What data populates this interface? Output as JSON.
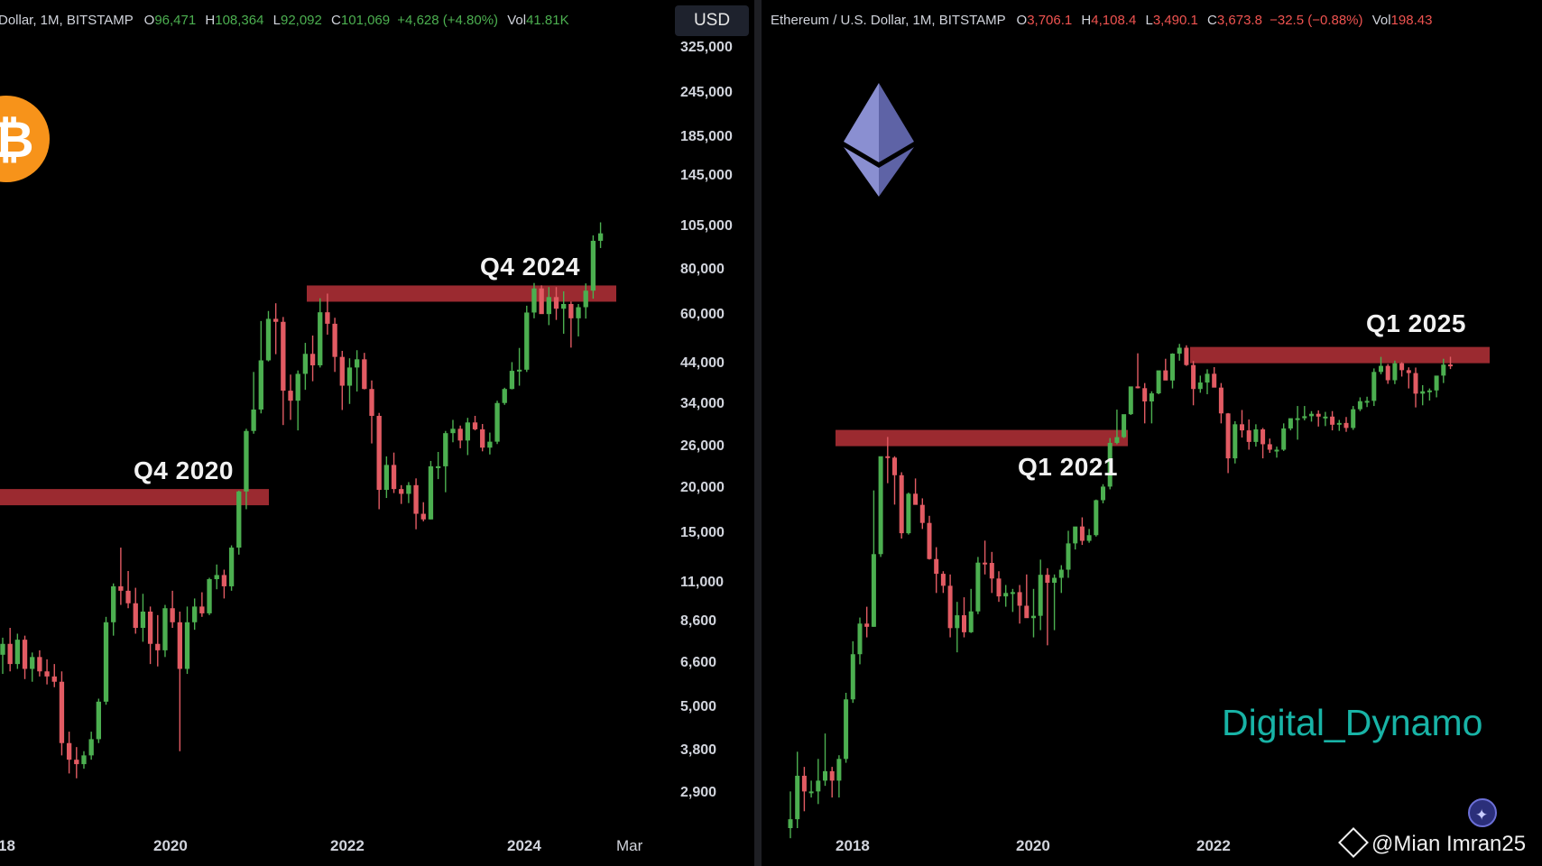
{
  "colors": {
    "up": "#4caf50",
    "down": "#e25b63",
    "resistance": "#9b2a30",
    "background": "#000000",
    "watermark": "#18b3a6"
  },
  "left_panel": {
    "legend": {
      "title": "Dollar, 1M, BITSTAMP",
      "o_key": "O",
      "o_val": "96,471",
      "h_key": "H",
      "h_val": "108,364",
      "l_key": "L",
      "l_val": "92,092",
      "c_key": "C",
      "c_val": "101,069",
      "change": "+4,628 (+4.80%)",
      "vol_key": "Vol",
      "vol_val": "41.81K"
    },
    "currency_button": "USD",
    "annotations": {
      "q4_2020": "Q4 2020",
      "q4_2024": "Q4 2024"
    }
  },
  "right_panel": {
    "legend": {
      "title": "Ethereum / U.S. Dollar, 1M, BITSTAMP",
      "o_key": "O",
      "o_val": "3,706.1",
      "h_key": "H",
      "h_val": "4,108.4",
      "l_key": "L",
      "l_val": "3,490.1",
      "c_key": "C",
      "c_val": "3,673.8",
      "change": "−32.5 (−0.88%)",
      "vol_key": "Vol",
      "vol_val": "198.43"
    },
    "annotations": {
      "q1_2021": "Q1 2021",
      "q1_2025": "Q1 2025"
    }
  },
  "watermark_text": "Digital_Dynamo",
  "credit_text": "@Mian Imran25",
  "icons": [
    "bitcoin-logo-icon",
    "ethereum-logo-icon",
    "binance-diamond-icon",
    "star-badge-icon"
  ],
  "chart_data": [
    {
      "type": "candlestick",
      "series_label": "Dollar, 1M, BITSTAMP",
      "scale": "log",
      "y_ticks": [
        "325,000",
        "245,000",
        "185,000",
        "145,000",
        "105,000",
        "80,000",
        "60,000",
        "44,000",
        "34,000",
        "26,000",
        "20,000",
        "15,000",
        "11,000",
        "8,600",
        "6,600",
        "5,000",
        "3,800",
        "2,900"
      ],
      "x_ticks": [
        "18",
        "2020",
        "2022",
        "2024",
        "Mar"
      ],
      "resistance_zones": [
        {
          "label": "Q4 2020",
          "level": 19000
        },
        {
          "label": "Q4 2024",
          "level": 69000
        }
      ],
      "candles_ohlc": [
        [
          7000,
          7800,
          6200,
          7500
        ],
        [
          7500,
          8300,
          6300,
          6600
        ],
        [
          6600,
          8000,
          6400,
          7700
        ],
        [
          7700,
          7900,
          6000,
          6400
        ],
        [
          6400,
          7100,
          5900,
          6900
        ],
        [
          6900,
          7200,
          6100,
          6300
        ],
        [
          6300,
          6800,
          5800,
          6100
        ],
        [
          6100,
          6600,
          5700,
          5900
        ],
        [
          5900,
          6300,
          3700,
          4000
        ],
        [
          4000,
          4300,
          3300,
          3600
        ],
        [
          3600,
          3900,
          3200,
          3500
        ],
        [
          3500,
          3800,
          3400,
          3700
        ],
        [
          3700,
          4300,
          3600,
          4100
        ],
        [
          4100,
          5300,
          4000,
          5200
        ],
        [
          5200,
          8900,
          5100,
          8600
        ],
        [
          8600,
          11000,
          7900,
          10800
        ],
        [
          10800,
          13800,
          9600,
          10500
        ],
        [
          10500,
          11900,
          9400,
          9700
        ],
        [
          9700,
          10700,
          8000,
          8300
        ],
        [
          8300,
          10300,
          7600,
          9200
        ],
        [
          9200,
          9500,
          6600,
          7500
        ],
        [
          7500,
          9000,
          6500,
          7200
        ],
        [
          7200,
          9600,
          6900,
          9400
        ],
        [
          9400,
          10500,
          8300,
          8600
        ],
        [
          8600,
          9200,
          3800,
          6400
        ],
        [
          6400,
          9500,
          6200,
          8600
        ],
        [
          8600,
          10000,
          8200,
          9500
        ],
        [
          9500,
          10400,
          8900,
          9100
        ],
        [
          9100,
          11400,
          9000,
          11300
        ],
        [
          11300,
          12400,
          10600,
          11600
        ],
        [
          11600,
          12000,
          10000,
          10800
        ],
        [
          10800,
          14000,
          10500,
          13800
        ],
        [
          13800,
          19800,
          13200,
          19700
        ],
        [
          19700,
          29300,
          17600,
          28900
        ],
        [
          28900,
          42000,
          28400,
          33100
        ],
        [
          33100,
          58000,
          32300,
          45200
        ],
        [
          45200,
          61800,
          44900,
          58800
        ],
        [
          58800,
          64900,
          47000,
          57700
        ],
        [
          57700,
          59500,
          30000,
          37300
        ],
        [
          37300,
          41300,
          31000,
          35000
        ],
        [
          35000,
          42400,
          29000,
          41500
        ],
        [
          41500,
          50500,
          37500,
          47100
        ],
        [
          47100,
          52900,
          39600,
          43800
        ],
        [
          43800,
          67000,
          43200,
          61300
        ],
        [
          61300,
          69000,
          53200,
          57000
        ],
        [
          57000,
          59200,
          42000,
          46200
        ],
        [
          46200,
          48000,
          33000,
          38500
        ],
        [
          38500,
          45800,
          34300,
          43200
        ],
        [
          43200,
          48200,
          37100,
          45500
        ],
        [
          45500,
          47400,
          37600,
          37700
        ],
        [
          37700,
          39800,
          26700,
          31800
        ],
        [
          31800,
          32400,
          17600,
          19900
        ],
        [
          19900,
          24600,
          18900,
          23300
        ],
        [
          23300,
          25200,
          19500,
          20000
        ],
        [
          20000,
          20500,
          18200,
          19400
        ],
        [
          19400,
          20900,
          18300,
          20500
        ],
        [
          20500,
          21400,
          15500,
          17100
        ],
        [
          17100,
          18400,
          16300,
          16500
        ],
        [
          16500,
          23900,
          16500,
          23100
        ],
        [
          23100,
          25300,
          21300,
          23100
        ],
        [
          23100,
          28900,
          19600,
          28500
        ],
        [
          28500,
          31000,
          26900,
          29300
        ],
        [
          29300,
          29900,
          25900,
          27200
        ],
        [
          27200,
          31400,
          24800,
          30500
        ],
        [
          30500,
          31800,
          29000,
          29200
        ],
        [
          29200,
          30200,
          25400,
          26000
        ],
        [
          26000,
          28600,
          24900,
          27000
        ],
        [
          27000,
          35000,
          26600,
          34500
        ],
        [
          34500,
          38000,
          34100,
          37700
        ],
        [
          37700,
          44700,
          37600,
          42300
        ],
        [
          42300,
          48900,
          38500,
          42600
        ],
        [
          42600,
          63900,
          42000,
          61200
        ],
        [
          61200,
          73800,
          59000,
          71300
        ],
        [
          71300,
          72700,
          60800,
          60600
        ],
        [
          60600,
          71900,
          56500,
          67500
        ],
        [
          67500,
          71900,
          58400,
          62700
        ],
        [
          62700,
          70000,
          53500,
          64600
        ],
        [
          64600,
          65600,
          49000,
          59000
        ],
        [
          59000,
          64600,
          52600,
          63300
        ],
        [
          63300,
          73600,
          58900,
          70300
        ],
        [
          70300,
          99800,
          66800,
          96400
        ],
        [
          96400,
          108364,
          92092,
          101069
        ]
      ]
    },
    {
      "type": "candlestick",
      "series_label": "Ethereum / U.S. Dollar, 1M, BITSTAMP",
      "scale": "log",
      "x_ticks": [
        "2018",
        "2020",
        "2022"
      ],
      "resistance_zones": [
        {
          "label": "Q1 2021",
          "level": 1400
        },
        {
          "label": "Q1 2025",
          "level": 4200
        }
      ],
      "candles_ohlc": [
        [
          8,
          13,
          7,
          9
        ],
        [
          9,
          22,
          8,
          16
        ],
        [
          16,
          18,
          10,
          13
        ],
        [
          13,
          15,
          12,
          13
        ],
        [
          13,
          20,
          11,
          15
        ],
        [
          15,
          28,
          14,
          17
        ],
        [
          17,
          18,
          12,
          15
        ],
        [
          15,
          21,
          12,
          20
        ],
        [
          20,
          48,
          19,
          44
        ],
        [
          44,
          95,
          42,
          80
        ],
        [
          80,
          130,
          70,
          120
        ],
        [
          120,
          150,
          100,
          115
        ],
        [
          115,
          700,
          115,
          301
        ],
        [
          301,
          1020,
          290,
          1100
        ],
        [
          1100,
          1420,
          770,
          1080
        ],
        [
          1080,
          1100,
          580,
          856
        ],
        [
          856,
          890,
          370,
          397
        ],
        [
          397,
          680,
          390,
          670
        ],
        [
          670,
          820,
          590,
          578
        ],
        [
          578,
          630,
          420,
          455
        ],
        [
          455,
          500,
          280,
          282
        ],
        [
          282,
          330,
          180,
          232
        ],
        [
          232,
          240,
          180,
          198
        ],
        [
          198,
          230,
          100,
          113
        ],
        [
          113,
          160,
          82,
          134
        ],
        [
          134,
          170,
          100,
          107
        ],
        [
          107,
          190,
          106,
          141
        ],
        [
          141,
          290,
          136,
          269
        ],
        [
          269,
          360,
          230,
          268
        ],
        [
          268,
          310,
          180,
          218
        ],
        [
          218,
          240,
          160,
          172
        ],
        [
          172,
          200,
          150,
          180
        ],
        [
          180,
          190,
          140,
          182
        ],
        [
          182,
          200,
          120,
          152
        ],
        [
          152,
          230,
          150,
          129
        ],
        [
          129,
          190,
          100,
          133
        ],
        [
          133,
          280,
          110,
          229
        ],
        [
          229,
          250,
          90,
          206
        ],
        [
          206,
          230,
          110,
          220
        ],
        [
          220,
          260,
          180,
          245
        ],
        [
          245,
          410,
          220,
          347
        ],
        [
          347,
          400,
          320,
          434
        ],
        [
          434,
          490,
          340,
          359
        ],
        [
          359,
          420,
          350,
          387
        ],
        [
          387,
          620,
          380,
          615
        ],
        [
          615,
          760,
          590,
          736
        ],
        [
          736,
          1400,
          710,
          1313
        ],
        [
          1313,
          2040,
          1290,
          1417
        ],
        [
          1417,
          1900,
          1400,
          1920
        ],
        [
          1920,
          2700,
          1900,
          2773
        ],
        [
          2773,
          4300,
          2700,
          2710
        ],
        [
          2710,
          2900,
          1700,
          2273
        ],
        [
          2273,
          2600,
          1700,
          2530
        ],
        [
          2530,
          3400,
          2500,
          3430
        ],
        [
          3430,
          4000,
          3100,
          3000
        ],
        [
          3000,
          4300,
          2700,
          4280
        ],
        [
          4280,
          4870,
          3900,
          4630
        ],
        [
          4630,
          4780,
          3640,
          3680
        ],
        [
          3680,
          3880,
          2160,
          2680
        ],
        [
          2680,
          3200,
          2550,
          2920
        ],
        [
          2920,
          3480,
          2500,
          3280
        ],
        [
          3280,
          3580,
          2800,
          2730
        ],
        [
          2730,
          2900,
          1700,
          1940
        ],
        [
          1940,
          1950,
          880,
          1070
        ],
        [
          1070,
          1750,
          1000,
          1680
        ],
        [
          1680,
          2030,
          1410,
          1550
        ],
        [
          1550,
          1790,
          1200,
          1330
        ],
        [
          1330,
          1680,
          1250,
          1570
        ],
        [
          1570,
          1600,
          1070,
          1290
        ],
        [
          1290,
          1390,
          1150,
          1200
        ],
        [
          1200,
          1250,
          1080,
          1200
        ],
        [
          1200,
          1700,
          1180,
          1590
        ],
        [
          1590,
          1730,
          1550,
          1820
        ],
        [
          1820,
          2140,
          1370,
          1820
        ],
        [
          1820,
          2140,
          1770,
          1870
        ],
        [
          1870,
          2000,
          1740,
          1930
        ],
        [
          1930,
          2020,
          1630,
          1860
        ],
        [
          1860,
          1980,
          1640,
          1860
        ],
        [
          1860,
          2000,
          1550,
          1670
        ],
        [
          1670,
          1780,
          1540,
          1710
        ],
        [
          1710,
          1850,
          1520,
          1600
        ],
        [
          1600,
          2140,
          1560,
          2050
        ],
        [
          2050,
          2400,
          2000,
          2280
        ],
        [
          2280,
          2420,
          2110,
          2290
        ],
        [
          2290,
          3520,
          2140,
          3360
        ],
        [
          3360,
          4100,
          3260,
          3640
        ],
        [
          3640,
          3730,
          2870,
          3010
        ],
        [
          3010,
          3900,
          2860,
          3770
        ],
        [
          3770,
          3820,
          3160,
          3440
        ],
        [
          3440,
          3570,
          2700,
          3310
        ],
        [
          3310,
          3560,
          2100,
          2520
        ],
        [
          2520,
          2820,
          2160,
          2600
        ],
        [
          2600,
          2700,
          2300,
          2630
        ],
        [
          2630,
          2700,
          2400,
          3200
        ],
        [
          3200,
          4000,
          2900,
          3700
        ],
        [
          3706.1,
          4108.4,
          3490.1,
          3673.8
        ]
      ]
    }
  ]
}
